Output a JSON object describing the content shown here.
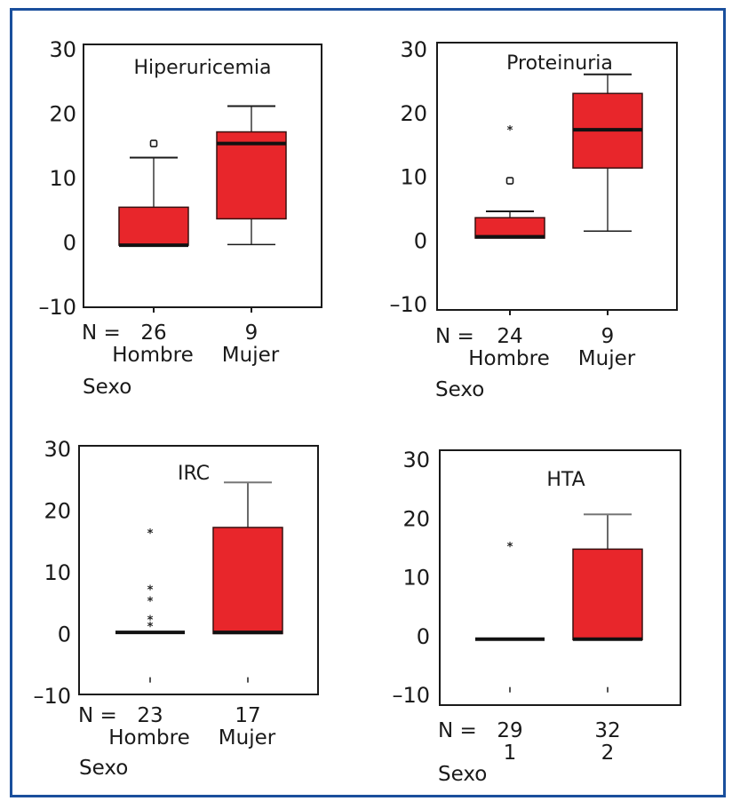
{
  "chart_data": [
    {
      "type": "box",
      "title": "Hiperuricemia",
      "xlabel": "Sexo",
      "n_prefix": "N =",
      "ylim": [
        -10,
        30
      ],
      "yticks": [
        30,
        20,
        10,
        0,
        -10
      ],
      "categories": [
        "Hombre",
        "Mujer"
      ],
      "n": [
        "26",
        "9"
      ],
      "boxes": [
        {
          "whisker_low": -0.5,
          "q1": -0.5,
          "median": -0.5,
          "q3": 5.4,
          "whisker_high": 13.1,
          "outliers": [
            {
              "value": 15.3,
              "marker": "circle"
            }
          ]
        },
        {
          "whisker_low": -0.4,
          "q1": 3.6,
          "median": 15.3,
          "q3": 17.1,
          "whisker_high": 21.1,
          "outliers": []
        }
      ]
    },
    {
      "type": "box",
      "title": "Proteinuria",
      "xlabel": "Sexo",
      "n_prefix": "N =",
      "ylim": [
        -10,
        30
      ],
      "yticks": [
        30,
        20,
        10,
        0,
        -10
      ],
      "categories": [
        "Hombre",
        "Mujer"
      ],
      "n": [
        "24",
        "9"
      ],
      "boxes": [
        {
          "whisker_low": 0.3,
          "q1": 0.3,
          "median": 0.5,
          "q3": 3.5,
          "whisker_high": 4.5,
          "outliers": [
            {
              "value": 9.3,
              "marker": "circle"
            },
            {
              "value": 17.3,
              "marker": "asterisk"
            }
          ]
        },
        {
          "whisker_low": 1.4,
          "q1": 11.3,
          "median": 17.3,
          "q3": 23.0,
          "whisker_high": 26.0,
          "outliers": []
        }
      ]
    },
    {
      "type": "box",
      "title": "IRC",
      "xlabel": "Sexo",
      "n_prefix": "N =",
      "ylim": [
        -10,
        30
      ],
      "yticks": [
        30,
        20,
        10,
        0,
        -10
      ],
      "categories": [
        "Hombre",
        "Mujer"
      ],
      "n": [
        "23",
        "17"
      ],
      "boxes": [
        {
          "whisker_low": 0.0,
          "q1": 0.0,
          "median": 0.2,
          "q3": 0.3,
          "whisker_high": 0.3,
          "outliers": [
            {
              "value": 16.3,
              "marker": "asterisk"
            },
            {
              "value": 7.2,
              "marker": "asterisk"
            },
            {
              "value": 5.3,
              "marker": "asterisk"
            },
            {
              "value": 2.3,
              "marker": "asterisk"
            },
            {
              "value": 1.2,
              "marker": "asterisk"
            }
          ],
          "mark": -7.5
        },
        {
          "whisker_low": 0.0,
          "q1": 0.0,
          "median": 0.2,
          "q3": 17.2,
          "whisker_high": 24.5,
          "outliers": [],
          "mark": -7.5
        }
      ]
    },
    {
      "type": "box",
      "title": "HTA",
      "xlabel": "Sexo",
      "n_prefix": "N =",
      "ylim": [
        -10,
        30
      ],
      "yticks": [
        30,
        20,
        10,
        0,
        -10
      ],
      "categories": [
        "1",
        "2"
      ],
      "n": [
        "29",
        "32"
      ],
      "boxes": [
        {
          "whisker_low": -0.6,
          "q1": -0.7,
          "median": -0.6,
          "q3": -0.5,
          "whisker_high": -0.5,
          "outliers": [
            {
              "value": 15.2,
              "marker": "asterisk"
            }
          ],
          "mark": -9.2
        },
        {
          "whisker_low": -0.7,
          "q1": -0.7,
          "median": -0.6,
          "q3": 14.7,
          "whisker_high": 20.6,
          "outliers": [],
          "mark": -9.2
        }
      ]
    }
  ],
  "colors": {
    "box_fill": "#e8262b",
    "frame_border": "#1a4f9c",
    "ink": "#1a1a1a",
    "whisker_cap_gray": "#777777"
  }
}
